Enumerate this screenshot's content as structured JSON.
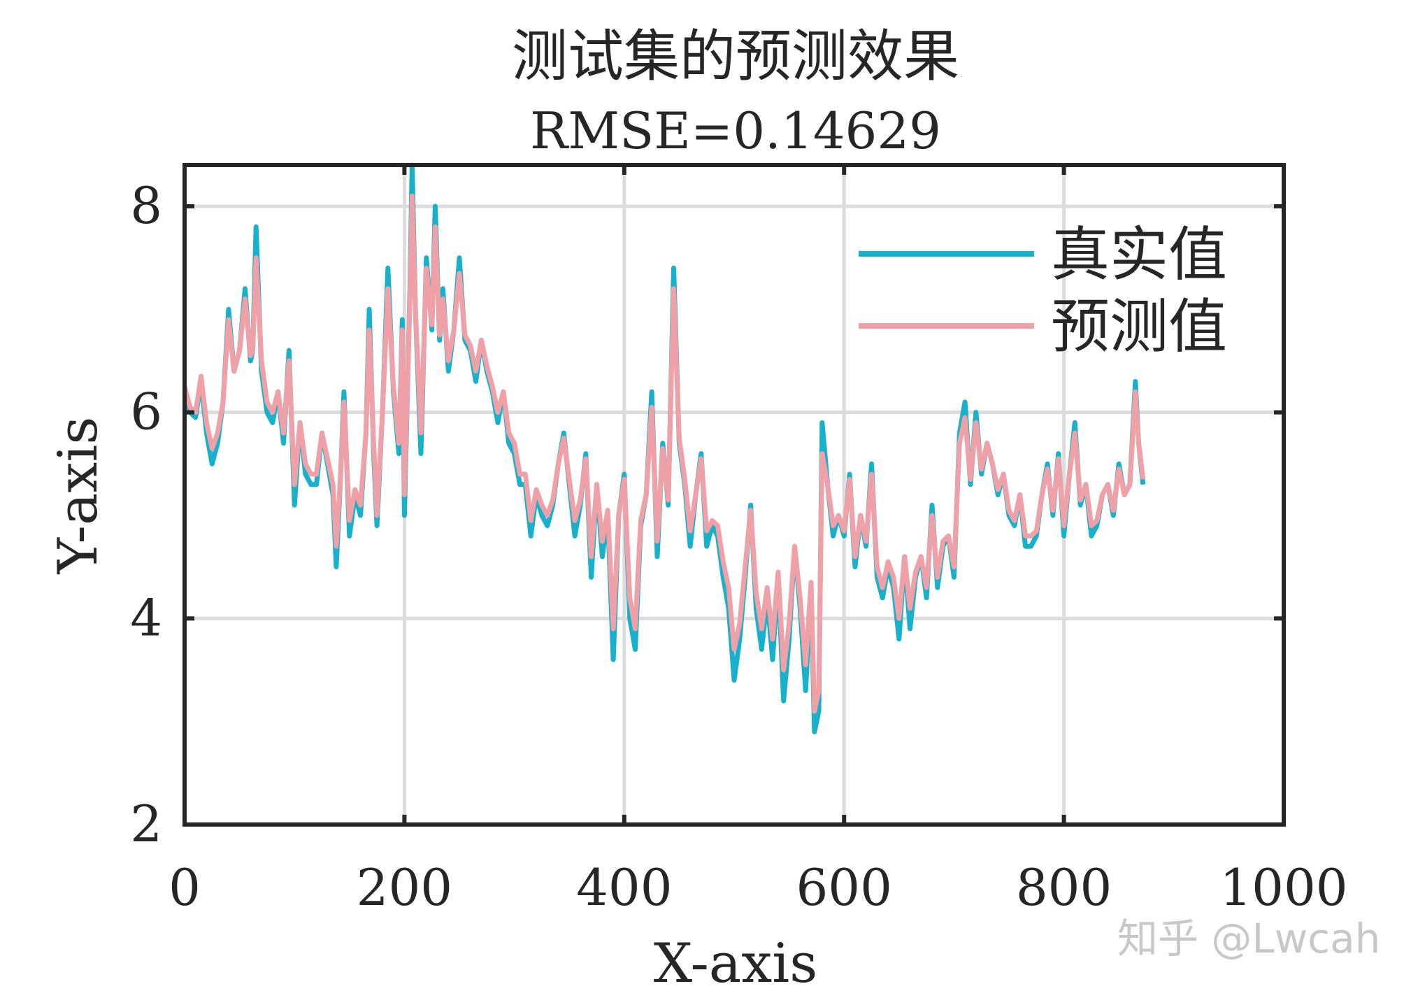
{
  "chart_data": {
    "type": "line",
    "title": "测试集的预测效果",
    "subtitle": "RMSE=0.14629",
    "xlabel": "X-axis",
    "ylabel": "Y-axis",
    "xlim": [
      0,
      1000
    ],
    "ylim": [
      2,
      8.4
    ],
    "xticks": [
      "0",
      "200",
      "400",
      "600",
      "800",
      "1000"
    ],
    "yticks": [
      "2",
      "4",
      "6",
      "8"
    ],
    "grid": true,
    "legend_position": "top-right",
    "x": [
      0,
      5,
      10,
      15,
      20,
      25,
      30,
      35,
      40,
      45,
      50,
      55,
      60,
      62,
      65,
      70,
      75,
      80,
      85,
      90,
      95,
      100,
      105,
      110,
      115,
      120,
      125,
      130,
      135,
      138,
      142,
      145,
      150,
      155,
      160,
      165,
      168,
      172,
      175,
      180,
      185,
      190,
      195,
      198,
      200,
      205,
      207,
      210,
      215,
      220,
      225,
      228,
      232,
      235,
      240,
      245,
      250,
      255,
      260,
      265,
      270,
      275,
      280,
      285,
      290,
      295,
      300,
      305,
      310,
      315,
      320,
      325,
      330,
      335,
      340,
      345,
      350,
      355,
      360,
      365,
      370,
      375,
      380,
      385,
      390,
      395,
      400,
      405,
      410,
      415,
      420,
      425,
      430,
      435,
      440,
      445,
      450,
      455,
      460,
      465,
      470,
      475,
      480,
      485,
      490,
      495,
      500,
      505,
      510,
      515,
      520,
      525,
      530,
      535,
      540,
      545,
      550,
      555,
      560,
      565,
      570,
      573,
      577,
      580,
      585,
      590,
      595,
      600,
      605,
      610,
      615,
      620,
      625,
      630,
      635,
      640,
      645,
      650,
      655,
      660,
      665,
      670,
      675,
      680,
      685,
      690,
      695,
      700,
      705,
      710,
      715,
      720,
      725,
      730,
      735,
      740,
      745,
      750,
      755,
      760,
      765,
      770,
      775,
      780,
      785,
      790,
      795,
      800,
      805,
      810,
      815,
      820,
      825,
      830,
      835,
      840,
      845,
      850,
      855,
      860,
      865,
      868,
      872
    ],
    "series": [
      {
        "name": "真实值",
        "color": "#17b1cb",
        "values": [
          6.2,
          6.0,
          5.95,
          6.3,
          5.8,
          5.5,
          5.7,
          6.1,
          7.0,
          6.4,
          6.6,
          7.2,
          6.5,
          6.6,
          7.8,
          6.4,
          6.0,
          5.9,
          6.2,
          5.7,
          6.6,
          5.1,
          5.9,
          5.4,
          5.3,
          5.3,
          5.8,
          5.5,
          5.2,
          4.5,
          5.4,
          6.2,
          4.8,
          5.2,
          5.0,
          5.8,
          7.0,
          5.6,
          4.9,
          6.0,
          7.4,
          6.2,
          5.6,
          6.9,
          5.0,
          7.2,
          8.4,
          7.0,
          5.6,
          7.5,
          6.8,
          8.0,
          6.7,
          7.2,
          6.4,
          6.8,
          7.5,
          6.7,
          6.6,
          6.3,
          6.7,
          6.4,
          6.2,
          5.9,
          6.2,
          5.7,
          5.6,
          5.3,
          5.3,
          4.8,
          5.2,
          5.0,
          4.9,
          5.1,
          5.5,
          5.8,
          5.3,
          4.8,
          5.1,
          5.6,
          4.4,
          5.3,
          4.6,
          5.0,
          3.6,
          5.0,
          5.4,
          4.0,
          3.7,
          4.9,
          5.2,
          6.2,
          4.6,
          5.7,
          5.1,
          7.4,
          5.7,
          5.3,
          4.7,
          5.2,
          5.6,
          4.7,
          4.9,
          4.8,
          4.4,
          4.1,
          3.4,
          3.8,
          4.4,
          5.1,
          4.1,
          3.7,
          4.2,
          3.6,
          4.4,
          3.2,
          3.8,
          4.7,
          4.1,
          3.3,
          4.3,
          2.9,
          3.1,
          5.9,
          5.3,
          4.8,
          5.0,
          4.8,
          5.4,
          4.5,
          5.0,
          4.7,
          5.5,
          4.4,
          4.2,
          4.5,
          4.3,
          3.8,
          4.6,
          3.9,
          4.4,
          4.6,
          4.2,
          5.1,
          4.3,
          4.7,
          4.8,
          4.4,
          5.8,
          6.1,
          5.3,
          6.0,
          5.4,
          5.7,
          5.5,
          5.2,
          5.4,
          5.0,
          4.9,
          5.2,
          4.7,
          4.7,
          4.8,
          5.2,
          5.5,
          5.0,
          5.6,
          4.8,
          5.4,
          5.9,
          5.1,
          5.3,
          4.8,
          4.9,
          5.2,
          5.3,
          5.0,
          5.5,
          5.2,
          5.3,
          6.3,
          5.7,
          5.3
        ]
      },
      {
        "name": "预测值",
        "color": "#f0a1a8",
        "values": [
          6.25,
          6.05,
          6.0,
          6.35,
          5.9,
          5.65,
          5.8,
          6.1,
          6.9,
          6.4,
          6.6,
          7.1,
          6.55,
          6.6,
          7.5,
          6.5,
          6.1,
          6.0,
          6.2,
          5.8,
          6.5,
          5.3,
          5.9,
          5.5,
          5.4,
          5.4,
          5.8,
          5.55,
          5.3,
          4.7,
          5.4,
          6.1,
          4.95,
          5.25,
          5.1,
          5.8,
          6.8,
          5.7,
          5.0,
          6.0,
          7.2,
          6.25,
          5.7,
          6.8,
          5.2,
          7.1,
          8.1,
          7.0,
          5.8,
          7.4,
          6.85,
          7.8,
          6.75,
          7.1,
          6.5,
          6.8,
          7.35,
          6.75,
          6.65,
          6.4,
          6.7,
          6.45,
          6.25,
          6.0,
          6.2,
          5.8,
          5.7,
          5.4,
          5.4,
          4.95,
          5.25,
          5.1,
          5.0,
          5.15,
          5.5,
          5.75,
          5.35,
          4.95,
          5.15,
          5.55,
          4.6,
          5.3,
          4.75,
          5.05,
          3.9,
          5.0,
          5.35,
          4.2,
          3.9,
          4.95,
          5.2,
          6.05,
          4.75,
          5.65,
          5.15,
          7.2,
          5.75,
          5.35,
          4.85,
          5.2,
          5.55,
          4.85,
          4.95,
          4.9,
          4.55,
          4.3,
          3.7,
          3.95,
          4.5,
          5.05,
          4.25,
          3.9,
          4.3,
          3.8,
          4.45,
          3.5,
          3.95,
          4.7,
          4.2,
          3.55,
          4.35,
          3.1,
          3.3,
          5.6,
          5.3,
          4.9,
          5.0,
          4.85,
          5.35,
          4.6,
          5.0,
          4.75,
          5.4,
          4.5,
          4.3,
          4.55,
          4.4,
          4.0,
          4.6,
          4.1,
          4.45,
          4.6,
          4.3,
          5.0,
          4.4,
          4.75,
          4.8,
          4.5,
          5.7,
          5.95,
          5.35,
          5.9,
          5.45,
          5.7,
          5.5,
          5.25,
          5.4,
          5.05,
          4.95,
          5.2,
          4.8,
          4.8,
          4.85,
          5.2,
          5.45,
          5.05,
          5.55,
          4.9,
          5.4,
          5.8,
          5.15,
          5.3,
          4.9,
          4.95,
          5.2,
          5.3,
          5.05,
          5.45,
          5.2,
          5.3,
          6.2,
          5.7,
          5.35
        ]
      }
    ]
  },
  "watermark": "知乎 @Lwcah"
}
